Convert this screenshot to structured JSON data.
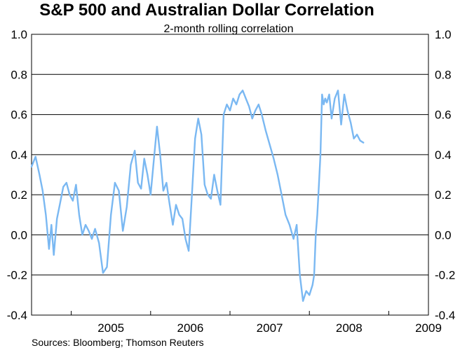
{
  "chart_data": {
    "type": "line",
    "title": "S&P 500 and Australian Dollar Correlation",
    "subtitle": "2-month rolling correlation",
    "source": "Sources: Bloomberg; Thomson Reuters",
    "ylim": [
      -0.4,
      1.0
    ],
    "y_ticks": [
      1.0,
      0.8,
      0.6,
      0.4,
      0.2,
      0.0,
      -0.2,
      -0.4
    ],
    "y_tick_labels": [
      "1.0",
      "0.8",
      "0.6",
      "0.4",
      "0.2",
      "0.0",
      "-0.2",
      "-0.4"
    ],
    "xlim": [
      2004.5,
      2009.5
    ],
    "x_year_labels": [
      "2005",
      "2006",
      "2007",
      "2008",
      "2009"
    ],
    "grid": true,
    "series": [
      {
        "name": "2-month rolling correlation",
        "color": "#7ab8f2",
        "x": [
          2004.5,
          2004.55,
          2004.6,
          2004.64,
          2004.68,
          2004.72,
          2004.75,
          2004.78,
          2004.82,
          2004.86,
          2004.9,
          2004.94,
          2004.98,
          2005.02,
          2005.06,
          2005.1,
          2005.14,
          2005.18,
          2005.22,
          2005.26,
          2005.3,
          2005.35,
          2005.4,
          2005.45,
          2005.5,
          2005.55,
          2005.6,
          2005.65,
          2005.7,
          2005.75,
          2005.8,
          2005.84,
          2005.88,
          2005.92,
          2005.96,
          2006.0,
          2006.04,
          2006.08,
          2006.12,
          2006.16,
          2006.2,
          2006.24,
          2006.28,
          2006.32,
          2006.36,
          2006.4,
          2006.44,
          2006.48,
          2006.52,
          2006.56,
          2006.6,
          2006.64,
          2006.68,
          2006.72,
          2006.76,
          2006.8,
          2006.84,
          2006.88,
          2006.92,
          2006.96,
          2007.0,
          2007.04,
          2007.08,
          2007.12,
          2007.16,
          2007.2,
          2007.24,
          2007.28,
          2007.32,
          2007.36,
          2007.4,
          2007.45,
          2007.5,
          2007.55,
          2007.6,
          2007.65,
          2007.7,
          2007.75,
          2007.8,
          2007.84,
          2007.88,
          2007.92,
          2007.96,
          2008.0,
          2008.04,
          2008.06,
          2008.08,
          2008.1,
          2008.12,
          2008.14,
          2008.16,
          2008.18,
          2008.2,
          2008.22,
          2008.25,
          2008.28,
          2008.32,
          2008.36,
          2008.4,
          2008.44,
          2008.48,
          2008.52,
          2008.56,
          2008.6,
          2008.64,
          2008.68
        ],
        "y": [
          0.34,
          0.39,
          0.3,
          0.22,
          0.1,
          -0.07,
          0.05,
          -0.1,
          0.08,
          0.16,
          0.24,
          0.26,
          0.2,
          0.17,
          0.25,
          0.1,
          0.0,
          0.05,
          0.02,
          -0.02,
          0.03,
          -0.04,
          -0.19,
          -0.16,
          0.1,
          0.26,
          0.22,
          0.02,
          0.14,
          0.35,
          0.42,
          0.26,
          0.23,
          0.38,
          0.3,
          0.2,
          0.37,
          0.54,
          0.4,
          0.22,
          0.26,
          0.15,
          0.05,
          0.15,
          0.1,
          0.08,
          -0.02,
          -0.08,
          0.2,
          0.48,
          0.58,
          0.5,
          0.25,
          0.2,
          0.18,
          0.3,
          0.22,
          0.15,
          0.6,
          0.65,
          0.62,
          0.68,
          0.65,
          0.7,
          0.72,
          0.68,
          0.64,
          0.58,
          0.62,
          0.65,
          0.6,
          0.52,
          0.45,
          0.38,
          0.3,
          0.2,
          0.1,
          0.05,
          -0.02,
          0.05,
          -0.2,
          -0.33,
          -0.28,
          -0.3,
          -0.25,
          -0.2,
          0.0,
          0.1,
          0.25,
          0.4,
          0.7,
          0.65,
          0.68,
          0.66,
          0.7,
          0.58,
          0.68,
          0.72,
          0.55,
          0.7,
          0.62,
          0.56,
          0.48,
          0.5,
          0.47,
          0.46
        ]
      }
    ]
  }
}
